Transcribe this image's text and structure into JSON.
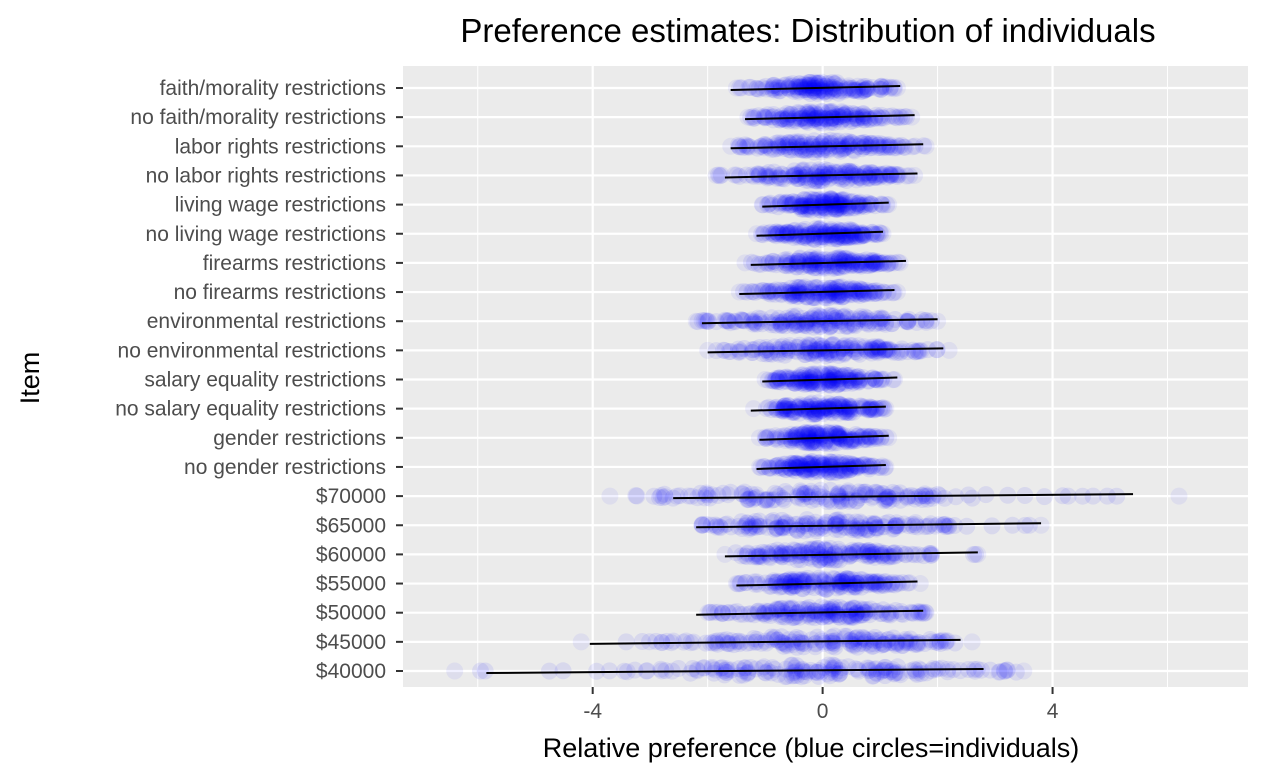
{
  "chart_data": {
    "type": "scatter",
    "title": "Preference estimates: Distribution of individuals",
    "xlabel": "Relative preference (blue circles=individuals)",
    "ylabel": "Item",
    "xlim": [
      -7.3,
      7.4
    ],
    "x_ticks": [
      -4,
      0,
      4
    ],
    "x_tick_labels": [
      "-4",
      "0",
      "4"
    ],
    "grid": true,
    "legend": "none",
    "colors": {
      "panel": "#EBEBEB",
      "grid": "#FFFFFF",
      "point": "#0000FF",
      "range_line": "#000000",
      "tick": "#333333"
    },
    "point_opacity": 0.08,
    "series": [
      {
        "label": "faith/morality restrictions",
        "min": -1.6,
        "max": 1.35,
        "sd": 0.7,
        "point_range": [
          -1.5,
          1.3
        ]
      },
      {
        "label": "no faith/morality restrictions",
        "min": -1.35,
        "max": 1.6,
        "sd": 0.7,
        "point_range": [
          -1.3,
          1.55
        ]
      },
      {
        "label": "labor rights restrictions",
        "min": -1.6,
        "max": 1.75,
        "sd": 0.8,
        "point_range": [
          -1.6,
          1.8
        ]
      },
      {
        "label": "no labor rights restrictions",
        "min": -1.7,
        "max": 1.65,
        "sd": 0.8,
        "point_range": [
          -1.85,
          1.6
        ]
      },
      {
        "label": "living wage restrictions",
        "min": -1.05,
        "max": 1.15,
        "sd": 0.55,
        "point_range": [
          -1.05,
          1.15
        ]
      },
      {
        "label": "no living wage restrictions",
        "min": -1.15,
        "max": 1.05,
        "sd": 0.55,
        "point_range": [
          -1.15,
          1.05
        ]
      },
      {
        "label": "firearms restrictions",
        "min": -1.25,
        "max": 1.45,
        "sd": 0.65,
        "point_range": [
          -1.35,
          1.35
        ]
      },
      {
        "label": "no firearms restrictions",
        "min": -1.45,
        "max": 1.25,
        "sd": 0.65,
        "point_range": [
          -1.45,
          1.3
        ]
      },
      {
        "label": "environmental restrictions",
        "min": -2.1,
        "max": 2.0,
        "sd": 1.0,
        "point_range": [
          -2.2,
          2.0
        ]
      },
      {
        "label": "no environmental restrictions",
        "min": -2.0,
        "max": 2.1,
        "sd": 1.0,
        "point_range": [
          -2.0,
          2.2
        ]
      },
      {
        "label": "salary equality restrictions",
        "min": -1.05,
        "max": 1.3,
        "sd": 0.55,
        "point_range": [
          -1.0,
          1.25
        ]
      },
      {
        "label": "no salary equality restrictions",
        "min": -1.25,
        "max": 1.1,
        "sd": 0.55,
        "point_range": [
          -1.2,
          1.1
        ]
      },
      {
        "label": "gender restrictions",
        "min": -1.1,
        "max": 1.15,
        "sd": 0.55,
        "point_range": [
          -1.1,
          1.15
        ]
      },
      {
        "label": "no gender restrictions",
        "min": -1.15,
        "max": 1.1,
        "sd": 0.55,
        "point_range": [
          -1.1,
          1.1
        ]
      },
      {
        "label": "$70000",
        "min": -2.6,
        "max": 5.4,
        "sd": 1.8,
        "point_range": [
          -3.7,
          6.2
        ]
      },
      {
        "label": "$65000",
        "min": -2.2,
        "max": 3.8,
        "sd": 1.4,
        "point_range": [
          -2.1,
          3.8
        ]
      },
      {
        "label": "$60000",
        "min": -1.7,
        "max": 2.7,
        "sd": 1.0,
        "point_range": [
          -1.7,
          2.7
        ]
      },
      {
        "label": "$55000",
        "min": -1.5,
        "max": 1.65,
        "sd": 0.75,
        "point_range": [
          -1.5,
          1.7
        ]
      },
      {
        "label": "$50000",
        "min": -2.2,
        "max": 1.75,
        "sd": 0.9,
        "point_range": [
          -2.0,
          1.8
        ]
      },
      {
        "label": "$45000",
        "min": -4.05,
        "max": 2.4,
        "sd": 1.4,
        "point_range": [
          -4.2,
          2.6
        ]
      },
      {
        "label": "$40000",
        "min": -5.85,
        "max": 2.8,
        "sd": 1.9,
        "point_range": [
          -6.4,
          3.5
        ]
      }
    ]
  }
}
